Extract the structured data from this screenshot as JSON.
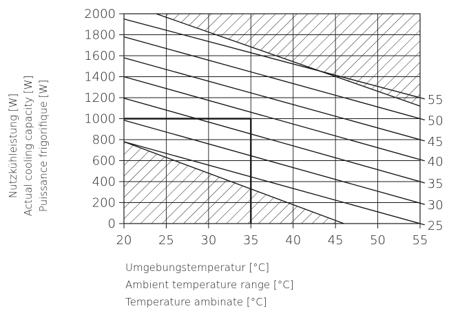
{
  "chart_data": {
    "type": "line",
    "x_ticks": [
      20,
      25,
      30,
      35,
      40,
      45,
      50,
      55
    ],
    "y_ticks": [
      0,
      200,
      400,
      600,
      800,
      1000,
      1200,
      1400,
      1600,
      1800,
      2000
    ],
    "xlim": [
      20,
      55
    ],
    "ylim": [
      0,
      2000
    ],
    "ylabel": [
      "Nutzkühleistung [W]",
      "Actual cooling capacity [W]",
      "Puissance frigorifique [W]"
    ],
    "xlabel": [
      "Umgebungstemperatur [°C]",
      "Ambient temperature range [°C]",
      "Temperature ambinate [°C]"
    ],
    "grid": true,
    "series": [
      {
        "name": "25",
        "points": [
          [
            20,
            780
          ],
          [
            55,
            0
          ]
        ]
      },
      {
        "name": "30",
        "points": [
          [
            20,
            985
          ],
          [
            55,
            195
          ]
        ]
      },
      {
        "name": "35",
        "points": [
          [
            20,
            1195
          ],
          [
            55,
            400
          ]
        ]
      },
      {
        "name": "40",
        "points": [
          [
            20,
            1400
          ],
          [
            55,
            610
          ]
        ]
      },
      {
        "name": "45",
        "points": [
          [
            20,
            1580
          ],
          [
            55,
            800
          ]
        ]
      },
      {
        "name": "50",
        "points": [
          [
            20,
            1780
          ],
          [
            55,
            1000
          ]
        ]
      },
      {
        "name": "55",
        "points": [
          [
            20,
            1950
          ],
          [
            55,
            1200
          ]
        ]
      }
    ],
    "example_reading": {
      "x": 35,
      "y": 1000
    },
    "hatched_regions": [
      "excluded-high-capacity",
      "excluded-low-capacity"
    ],
    "hatch_boundaries": {
      "upper": [
        [
          23.8,
          2000
        ],
        [
          55,
          1120
        ]
      ],
      "lower": [
        [
          20,
          780
        ],
        [
          46,
          0
        ]
      ]
    }
  }
}
